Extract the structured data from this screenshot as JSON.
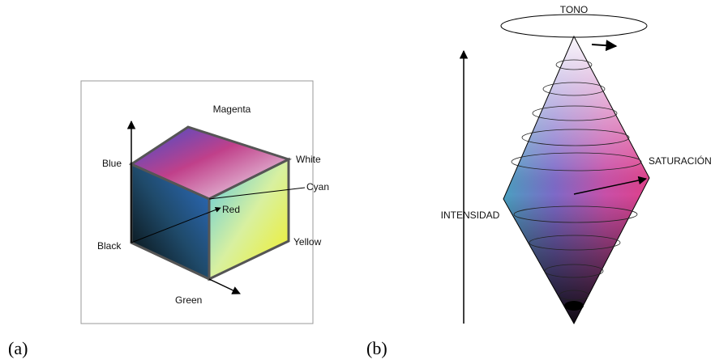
{
  "panel_a": {
    "caption": "(a)",
    "labels": {
      "magenta": "Magenta",
      "white": "White",
      "blue": "Blue",
      "cyan": "Cyan",
      "red": "Red",
      "black": "Black",
      "yellow": "Yellow",
      "green": "Green"
    }
  },
  "panel_b": {
    "caption": "(b)",
    "labels": {
      "hue": "TONO",
      "saturation": "SATURACIÓN",
      "intensity": "INTENSIDAD"
    }
  }
}
